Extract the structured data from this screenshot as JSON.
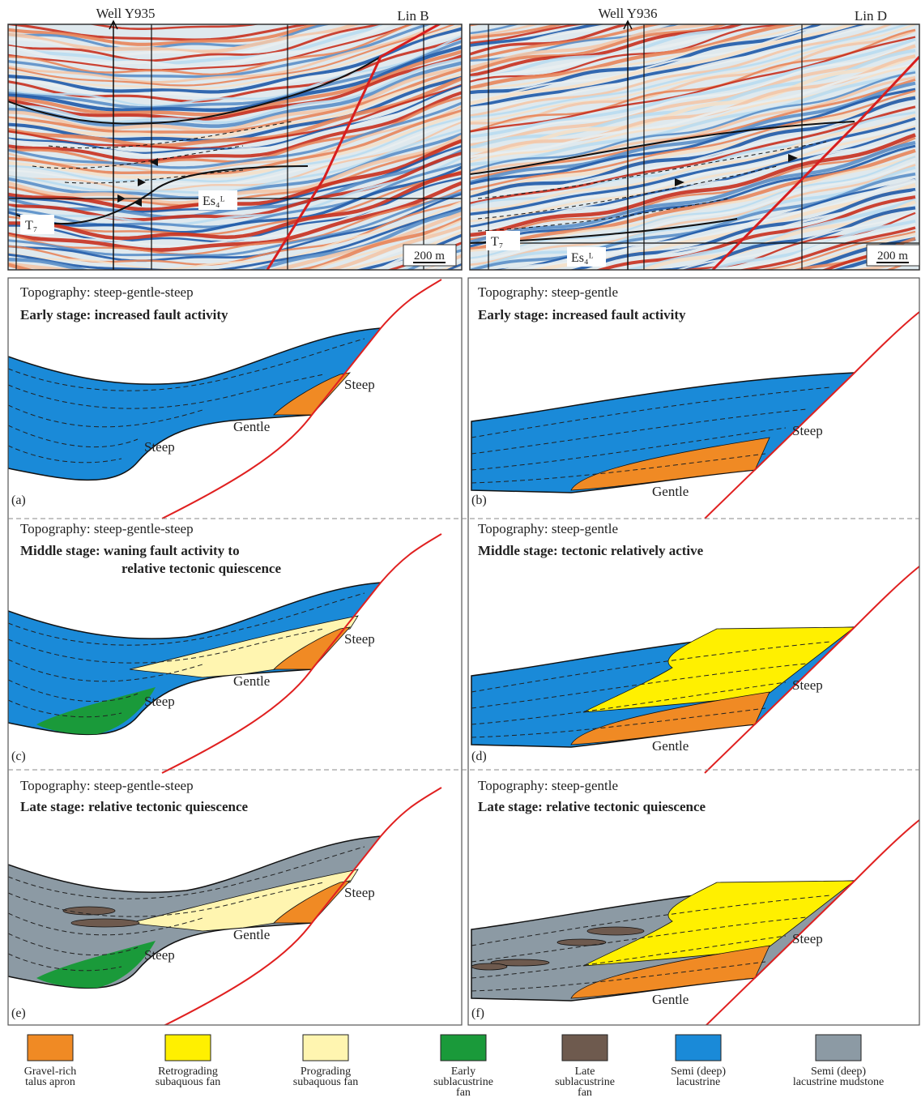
{
  "seismic": [
    {
      "well": "Well Y935",
      "line": "Lin B",
      "horizon": "T₇",
      "unit": "Es₄ᴸ",
      "scale": "200 m"
    },
    {
      "well": "Well Y936",
      "line": "Lin D",
      "horizon": "T₇",
      "unit": "Es₄ᴸ",
      "scale": "200 m"
    }
  ],
  "panels": [
    {
      "letter": "(a)",
      "topography": "Topography: steep-gentle-steep",
      "stage": [
        "Early stage: increased fault activity"
      ],
      "labels": [
        "Steep",
        "Gentle",
        "Steep"
      ]
    },
    {
      "letter": "(b)",
      "topography": "Topography: steep-gentle",
      "stage": [
        "Early stage: increased fault activity"
      ],
      "labels": [
        "Steep",
        "Gentle"
      ]
    },
    {
      "letter": "(c)",
      "topography": "Topography: steep-gentle-steep",
      "stage": [
        "Middle stage: waning fault activity  to",
        "relative tectonic quiescence"
      ],
      "labels": [
        "Steep",
        "Gentle",
        "Steep"
      ]
    },
    {
      "letter": "(d)",
      "topography": "Topography: steep-gentle",
      "stage": [
        "Middle stage: tectonic relatively active"
      ],
      "labels": [
        "Steep",
        "Gentle"
      ]
    },
    {
      "letter": "(e)",
      "topography": "Topography: steep-gentle-steep",
      "stage": [
        "Late stage: relative tectonic quiescence"
      ],
      "labels": [
        "Steep",
        "Gentle",
        "Steep"
      ]
    },
    {
      "letter": "(f)",
      "topography": "Topography: steep-gentle",
      "stage": [
        "Late stage: relative tectonic quiescence"
      ],
      "labels": [
        "Steep",
        "Gentle"
      ]
    }
  ],
  "legend": [
    [
      "Gravel-rich",
      "talus apron"
    ],
    [
      "Retrograding",
      "subaquous fan"
    ],
    [
      "Prograding",
      "subaquous fan"
    ],
    [
      "Early",
      "sublacustrine",
      "fan"
    ],
    [
      "Late",
      "sublacustrine",
      "fan"
    ],
    [
      "Semi (deep)",
      "lacustrine"
    ],
    [
      "Semi (deep)",
      "lacustrine mudstone"
    ]
  ]
}
